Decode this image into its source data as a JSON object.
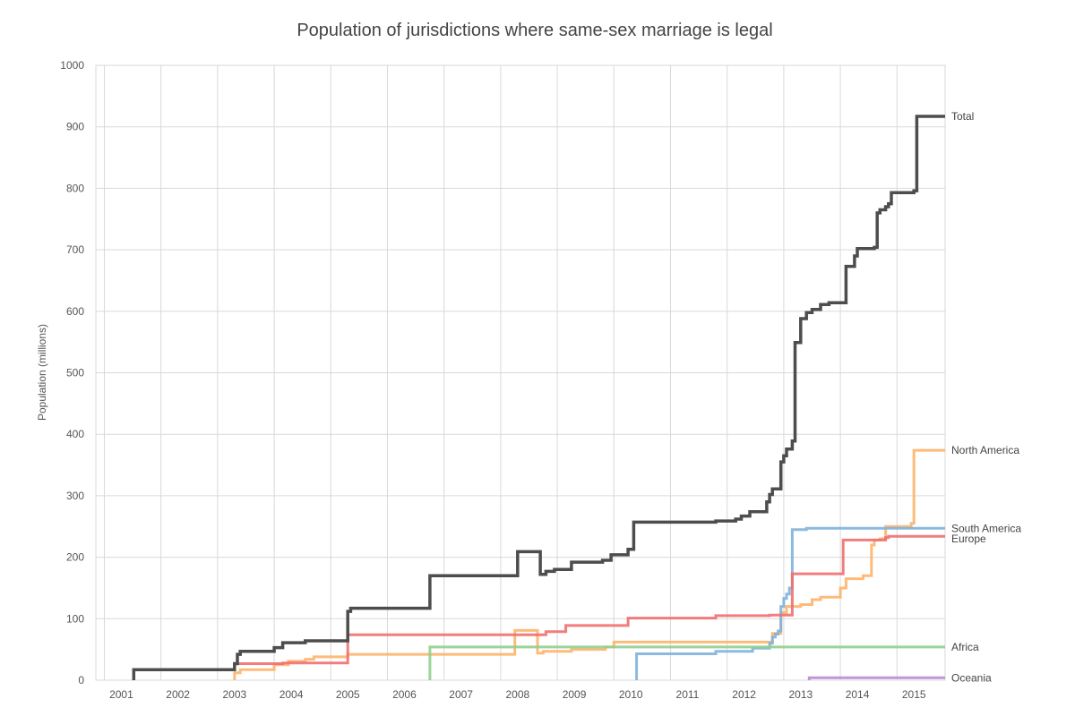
{
  "chart_data": {
    "type": "line",
    "step": true,
    "title": "Population of jurisdictions where same-sex marriage is legal",
    "ylabel": "Population (millions)",
    "xlabel": "",
    "xlim": [
      2000.55,
      2015.55
    ],
    "ylim": [
      0,
      1000
    ],
    "yticks": [
      0,
      100,
      200,
      300,
      400,
      500,
      600,
      700,
      800,
      900,
      1000
    ],
    "xticks": [
      2001,
      2002,
      2003,
      2004,
      2005,
      2006,
      2007,
      2008,
      2009,
      2010,
      2011,
      2012,
      2013,
      2014,
      2015
    ],
    "xtick_labels": [
      "2001",
      "2002",
      "2003",
      "2004",
      "2005",
      "2006",
      "2007",
      "2008",
      "2009",
      "2010",
      "2011",
      "2012",
      "2013",
      "2014",
      "2015"
    ],
    "x_gridlines": [
      2000.7,
      2001.7,
      2002.7,
      2003.7,
      2004.7,
      2005.7,
      2006.7,
      2007.7,
      2008.7,
      2009.7,
      2010.7,
      2011.7,
      2012.7,
      2013.7,
      2014.7
    ],
    "grid": true,
    "legend": "labels at line ends (right)",
    "series": [
      {
        "name": "Total",
        "color": "#4d4d4d",
        "points": [
          [
            2001.22,
            0
          ],
          [
            2001.22,
            17
          ],
          [
            2003.0,
            17
          ],
          [
            2003.0,
            27
          ],
          [
            2003.05,
            27
          ],
          [
            2003.05,
            42
          ],
          [
            2003.1,
            42
          ],
          [
            2003.1,
            47
          ],
          [
            2003.7,
            47
          ],
          [
            2003.7,
            53
          ],
          [
            2003.85,
            53
          ],
          [
            2003.85,
            61
          ],
          [
            2004.25,
            61
          ],
          [
            2004.25,
            64
          ],
          [
            2005.0,
            64
          ],
          [
            2005.0,
            112
          ],
          [
            2005.05,
            112
          ],
          [
            2005.05,
            117
          ],
          [
            2006.45,
            117
          ],
          [
            2006.45,
            170
          ],
          [
            2008.0,
            170
          ],
          [
            2008.0,
            209
          ],
          [
            2008.4,
            209
          ],
          [
            2008.4,
            172
          ],
          [
            2008.5,
            172
          ],
          [
            2008.5,
            177
          ],
          [
            2008.65,
            177
          ],
          [
            2008.65,
            180
          ],
          [
            2008.95,
            180
          ],
          [
            2008.95,
            192
          ],
          [
            2009.5,
            192
          ],
          [
            2009.5,
            195
          ],
          [
            2009.65,
            195
          ],
          [
            2009.65,
            204
          ],
          [
            2009.95,
            204
          ],
          [
            2009.95,
            213
          ],
          [
            2010.05,
            213
          ],
          [
            2010.05,
            257
          ],
          [
            2011.5,
            257
          ],
          [
            2011.5,
            259
          ],
          [
            2011.85,
            259
          ],
          [
            2011.85,
            262
          ],
          [
            2011.95,
            262
          ],
          [
            2011.95,
            267
          ],
          [
            2012.1,
            267
          ],
          [
            2012.1,
            274
          ],
          [
            2012.4,
            274
          ],
          [
            2012.4,
            290
          ],
          [
            2012.45,
            290
          ],
          [
            2012.45,
            302
          ],
          [
            2012.5,
            302
          ],
          [
            2012.5,
            311
          ],
          [
            2012.65,
            311
          ],
          [
            2012.65,
            355
          ],
          [
            2012.7,
            355
          ],
          [
            2012.7,
            365
          ],
          [
            2012.75,
            365
          ],
          [
            2012.75,
            376
          ],
          [
            2012.85,
            376
          ],
          [
            2012.85,
            389
          ],
          [
            2012.9,
            389
          ],
          [
            2012.9,
            549
          ],
          [
            2013.0,
            549
          ],
          [
            2013.0,
            588
          ],
          [
            2013.1,
            588
          ],
          [
            2013.1,
            598
          ],
          [
            2013.2,
            598
          ],
          [
            2013.2,
            603
          ],
          [
            2013.35,
            603
          ],
          [
            2013.35,
            611
          ],
          [
            2013.5,
            611
          ],
          [
            2013.5,
            614
          ],
          [
            2013.8,
            614
          ],
          [
            2013.8,
            673
          ],
          [
            2013.95,
            673
          ],
          [
            2013.95,
            690
          ],
          [
            2014.0,
            690
          ],
          [
            2014.0,
            702
          ],
          [
            2014.3,
            702
          ],
          [
            2014.3,
            704
          ],
          [
            2014.35,
            704
          ],
          [
            2014.35,
            760
          ],
          [
            2014.4,
            760
          ],
          [
            2014.4,
            765
          ],
          [
            2014.5,
            765
          ],
          [
            2014.5,
            770
          ],
          [
            2014.55,
            770
          ],
          [
            2014.55,
            775
          ],
          [
            2014.6,
            775
          ],
          [
            2014.6,
            793
          ],
          [
            2015.0,
            793
          ],
          [
            2015.0,
            796
          ],
          [
            2015.05,
            796
          ],
          [
            2015.05,
            917
          ],
          [
            2015.55,
            917
          ]
        ]
      },
      {
        "name": "North America",
        "color": "#fdb46c",
        "points": [
          [
            2003.0,
            0
          ],
          [
            2003.0,
            12
          ],
          [
            2003.1,
            12
          ],
          [
            2003.1,
            17
          ],
          [
            2003.7,
            17
          ],
          [
            2003.7,
            25
          ],
          [
            2003.95,
            25
          ],
          [
            2003.95,
            31
          ],
          [
            2004.25,
            31
          ],
          [
            2004.25,
            34
          ],
          [
            2004.4,
            34
          ],
          [
            2004.4,
            38
          ],
          [
            2005.0,
            38
          ],
          [
            2005.0,
            42
          ],
          [
            2007.95,
            42
          ],
          [
            2007.95,
            81
          ],
          [
            2008.35,
            81
          ],
          [
            2008.35,
            44
          ],
          [
            2008.45,
            44
          ],
          [
            2008.45,
            47
          ],
          [
            2008.95,
            47
          ],
          [
            2008.95,
            50
          ],
          [
            2009.55,
            50
          ],
          [
            2009.55,
            54
          ],
          [
            2009.7,
            54
          ],
          [
            2009.7,
            62
          ],
          [
            2012.5,
            62
          ],
          [
            2012.5,
            76
          ],
          [
            2012.65,
            76
          ],
          [
            2012.65,
            110
          ],
          [
            2012.75,
            110
          ],
          [
            2012.75,
            120
          ],
          [
            2013.0,
            120
          ],
          [
            2013.0,
            123
          ],
          [
            2013.2,
            123
          ],
          [
            2013.2,
            131
          ],
          [
            2013.35,
            131
          ],
          [
            2013.35,
            135
          ],
          [
            2013.7,
            135
          ],
          [
            2013.7,
            150
          ],
          [
            2013.8,
            150
          ],
          [
            2013.8,
            165
          ],
          [
            2014.1,
            165
          ],
          [
            2014.1,
            170
          ],
          [
            2014.25,
            170
          ],
          [
            2014.25,
            220
          ],
          [
            2014.3,
            220
          ],
          [
            2014.3,
            228
          ],
          [
            2014.4,
            228
          ],
          [
            2014.4,
            230
          ],
          [
            2014.5,
            230
          ],
          [
            2014.5,
            250
          ],
          [
            2014.95,
            250
          ],
          [
            2014.95,
            255
          ],
          [
            2015.0,
            255
          ],
          [
            2015.0,
            374
          ],
          [
            2015.55,
            374
          ]
        ]
      },
      {
        "name": "South America",
        "color": "#7fb2da",
        "points": [
          [
            2010.1,
            0
          ],
          [
            2010.1,
            43
          ],
          [
            2011.5,
            43
          ],
          [
            2011.5,
            47
          ],
          [
            2012.15,
            47
          ],
          [
            2012.15,
            52
          ],
          [
            2012.45,
            52
          ],
          [
            2012.45,
            60
          ],
          [
            2012.5,
            60
          ],
          [
            2012.5,
            70
          ],
          [
            2012.55,
            70
          ],
          [
            2012.55,
            75
          ],
          [
            2012.6,
            75
          ],
          [
            2012.6,
            80
          ],
          [
            2012.65,
            80
          ],
          [
            2012.65,
            120
          ],
          [
            2012.7,
            120
          ],
          [
            2012.7,
            133
          ],
          [
            2012.75,
            133
          ],
          [
            2012.75,
            140
          ],
          [
            2012.8,
            140
          ],
          [
            2012.8,
            150
          ],
          [
            2012.85,
            150
          ],
          [
            2012.85,
            245
          ],
          [
            2013.1,
            245
          ],
          [
            2013.1,
            247
          ],
          [
            2015.55,
            247
          ]
        ]
      },
      {
        "name": "Europe",
        "color": "#ef6f6f",
        "points": [
          [
            2003.0,
            27
          ],
          [
            2003.85,
            27
          ],
          [
            2003.85,
            28
          ],
          [
            2005.0,
            28
          ],
          [
            2005.0,
            74
          ],
          [
            2008.5,
            74
          ],
          [
            2008.5,
            79
          ],
          [
            2008.85,
            79
          ],
          [
            2008.85,
            89
          ],
          [
            2009.45,
            89
          ],
          [
            2009.45,
            89
          ],
          [
            2009.95,
            89
          ],
          [
            2009.95,
            101
          ],
          [
            2011.5,
            101
          ],
          [
            2011.5,
            105
          ],
          [
            2012.45,
            105
          ],
          [
            2012.45,
            106
          ],
          [
            2012.85,
            106
          ],
          [
            2012.85,
            173
          ],
          [
            2013.75,
            173
          ],
          [
            2013.75,
            228
          ],
          [
            2014.5,
            228
          ],
          [
            2014.5,
            232
          ],
          [
            2014.55,
            232
          ],
          [
            2014.55,
            234
          ],
          [
            2015.55,
            234
          ]
        ]
      },
      {
        "name": "Africa",
        "color": "#90cf8f",
        "points": [
          [
            2006.45,
            0
          ],
          [
            2006.45,
            54
          ],
          [
            2015.55,
            54
          ]
        ]
      },
      {
        "name": "Oceania",
        "color": "#b98bd3",
        "points": [
          [
            2013.15,
            0
          ],
          [
            2013.15,
            4
          ],
          [
            2015.55,
            4
          ]
        ]
      }
    ]
  }
}
